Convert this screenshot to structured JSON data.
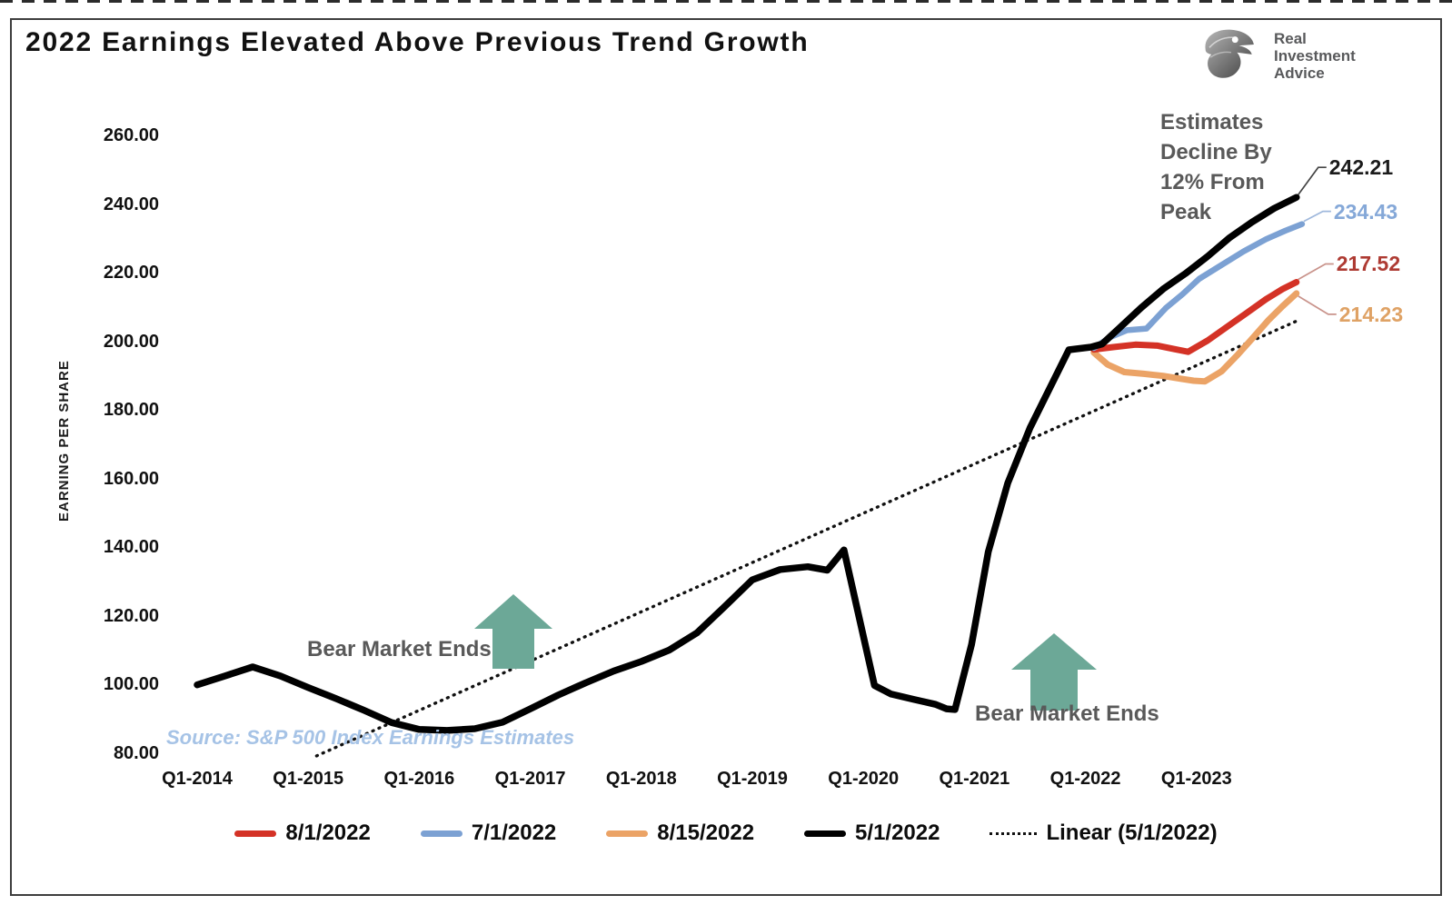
{
  "title": "2022 Earnings Elevated Above Previous Trend Growth",
  "logo": {
    "line1": "Real",
    "line2": "Investment",
    "line3": "Advice",
    "icon": "eagle-logo-icon"
  },
  "source_note": "Source: S&P 500 Index Earnings Estimates",
  "annotations": {
    "estimates_lines": [
      "Estimates",
      "Decline By",
      "12% From",
      "Peak"
    ],
    "bear_market_left": "Bear Market Ends",
    "bear_market_right": "Bear Market Ends",
    "arrow_color": "#6CA897"
  },
  "chart_data": {
    "type": "line",
    "title": "2022 Earnings Elevated Above Previous Trend Growth",
    "xlabel": "",
    "ylabel": "EARNING PER SHARE",
    "ylim": [
      80,
      260
    ],
    "ytick_step": 20,
    "yticks": [
      "260.00",
      "240.00",
      "220.00",
      "200.00",
      "180.00",
      "160.00",
      "140.00",
      "120.00",
      "100.00",
      "80.00"
    ],
    "xticks": [
      "Q1-2014",
      "Q1-2015",
      "Q1-2016",
      "Q1-2017",
      "Q1-2018",
      "Q1-2019",
      "Q1-2020",
      "Q1-2021",
      "Q1-2022",
      "Q1-2023"
    ],
    "x_unit": "quarters since Q1-2014 (index 0 = Q1-2014, 4 per year)",
    "grid": false,
    "legend_position": "bottom",
    "series": [
      {
        "name": "Linear (5/1/2022)",
        "style": "dotted",
        "color": "#111111",
        "width": 3.4,
        "points": [
          [
            4.3,
            79.5
          ],
          [
            39.7,
            206.5
          ]
        ]
      },
      {
        "name": "8/15/2022",
        "style": "solid",
        "color": "#EBA366",
        "width": 7,
        "end_label": "214.23",
        "label_color": "#DFA265",
        "leader_color": "#C9938B",
        "points": [
          [
            32.3,
            197.0
          ],
          [
            32.8,
            193.5
          ],
          [
            33.4,
            191.3
          ],
          [
            34.1,
            190.8
          ],
          [
            34.8,
            190.2
          ],
          [
            35.4,
            189.4
          ],
          [
            35.9,
            188.8
          ],
          [
            36.3,
            188.6
          ],
          [
            36.9,
            191.5
          ],
          [
            37.5,
            196.5
          ],
          [
            38.0,
            201.0
          ],
          [
            38.6,
            206.5
          ],
          [
            39.1,
            210.5
          ],
          [
            39.6,
            214.23
          ]
        ]
      },
      {
        "name": "8/1/2022",
        "style": "solid",
        "color": "#D43226",
        "width": 7,
        "end_label": "217.52",
        "label_color": "#AE3B33",
        "leader_color": "#C9938B",
        "points": [
          [
            32.3,
            197.9
          ],
          [
            33.0,
            198.6
          ],
          [
            33.8,
            199.3
          ],
          [
            34.6,
            199.0
          ],
          [
            35.2,
            198.0
          ],
          [
            35.7,
            197.2
          ],
          [
            36.4,
            200.5
          ],
          [
            37.1,
            204.5
          ],
          [
            37.8,
            208.5
          ],
          [
            38.5,
            212.5
          ],
          [
            39.1,
            215.5
          ],
          [
            39.6,
            217.52
          ]
        ]
      },
      {
        "name": "7/1/2022",
        "style": "solid",
        "color": "#7CA1D3",
        "width": 6.5,
        "end_label": "234.43",
        "label_color": "#85A8D8",
        "leader_color": "#9FB8DC",
        "points": [
          [
            32.3,
            198.3
          ],
          [
            32.9,
            201.5
          ],
          [
            33.5,
            203.5
          ],
          [
            34.2,
            204.0
          ],
          [
            34.9,
            210.0
          ],
          [
            35.5,
            214.0
          ],
          [
            36.1,
            218.5
          ],
          [
            36.9,
            222.5
          ],
          [
            37.7,
            226.5
          ],
          [
            38.5,
            230.0
          ],
          [
            39.2,
            232.5
          ],
          [
            39.8,
            234.43
          ]
        ]
      },
      {
        "name": "5/1/2022",
        "style": "solid",
        "color": "#000000",
        "width": 7.5,
        "end_label": "242.21",
        "label_color": "#1b1b1b",
        "leader_color": "#444444",
        "points": [
          [
            0,
            100.2
          ],
          [
            1,
            102.8
          ],
          [
            2,
            105.4
          ],
          [
            3,
            102.8
          ],
          [
            4,
            99.4
          ],
          [
            5,
            96.2
          ],
          [
            6,
            92.8
          ],
          [
            7,
            89.2
          ],
          [
            8,
            87.2
          ],
          [
            9,
            86.9
          ],
          [
            10,
            87.4
          ],
          [
            11,
            89.3
          ],
          [
            12,
            93.2
          ],
          [
            13,
            97.2
          ],
          [
            14,
            100.8
          ],
          [
            15,
            104.2
          ],
          [
            16,
            107.0
          ],
          [
            17,
            110.3
          ],
          [
            18,
            115.3
          ],
          [
            19,
            123.0
          ],
          [
            20,
            130.8
          ],
          [
            21,
            133.8
          ],
          [
            22,
            134.6
          ],
          [
            22.7,
            133.6
          ],
          [
            23.3,
            139.5
          ],
          [
            24.4,
            100.0
          ],
          [
            25.0,
            97.5
          ],
          [
            25.8,
            96.0
          ],
          [
            26.6,
            94.5
          ],
          [
            27.0,
            93.2
          ],
          [
            27.3,
            93.0
          ],
          [
            27.9,
            112.0
          ],
          [
            28.5,
            139.0
          ],
          [
            29.2,
            159.0
          ],
          [
            30.0,
            175.0
          ],
          [
            30.8,
            188.0
          ],
          [
            31.4,
            197.8
          ],
          [
            32.2,
            198.6
          ],
          [
            32.6,
            199.5
          ],
          [
            33.2,
            204.0
          ],
          [
            34.0,
            210.0
          ],
          [
            34.8,
            215.5
          ],
          [
            35.6,
            220.0
          ],
          [
            36.4,
            225.0
          ],
          [
            37.2,
            230.5
          ],
          [
            38.0,
            235.0
          ],
          [
            38.8,
            239.0
          ],
          [
            39.6,
            242.21
          ]
        ]
      }
    ],
    "end_labels": [
      "242.21",
      "234.43",
      "217.52",
      "214.23"
    ],
    "legend": [
      {
        "label": "8/1/2022",
        "color": "#D43226",
        "style": "solid"
      },
      {
        "label": "7/1/2022",
        "color": "#7CA1D3",
        "style": "solid"
      },
      {
        "label": "8/15/2022",
        "color": "#EBA366",
        "style": "solid"
      },
      {
        "label": "5/1/2022",
        "color": "#000000",
        "style": "solid"
      },
      {
        "label": "Linear (5/1/2022)",
        "color": "#111111",
        "style": "dotted"
      }
    ]
  }
}
